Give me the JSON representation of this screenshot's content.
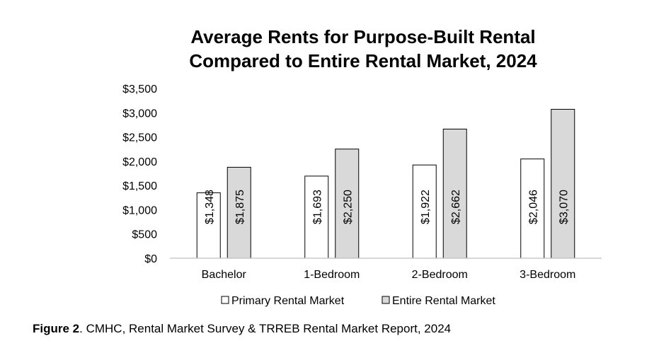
{
  "chart_data": {
    "type": "bar",
    "title_line1": "Average Rents for Purpose-Built Rental",
    "title_line2": "Compared to Entire Rental Market, 2024",
    "xlabel": "",
    "ylabel": "",
    "ylim": [
      0,
      3500
    ],
    "yticks": [
      "$0",
      "$500",
      "$1,000",
      "$1,500",
      "$2,000",
      "$2,500",
      "$3,000",
      "$3,500"
    ],
    "categories": [
      "Bachelor",
      "1-Bedroom",
      "2-Bedroom",
      "3-Bedroom"
    ],
    "series": [
      {
        "name": "Primary Rental Market",
        "values": [
          1348,
          1693,
          1922,
          2046
        ],
        "labels": [
          "$1,348",
          "$1,693",
          "$1,922",
          "$2,046"
        ],
        "color": "#ffffff"
      },
      {
        "name": "Entire Rental Market",
        "values": [
          1875,
          2250,
          2662,
          3070
        ],
        "labels": [
          "$1,875",
          "$2,250",
          "$2,662",
          "$3,070"
        ],
        "color": "#d9d9d9"
      }
    ],
    "grid": false,
    "legend_position": "bottom"
  },
  "caption": {
    "label": "Figure 2",
    "text": ". CMHC, Rental Market Survey & TRREB Rental Market Report, 2024"
  }
}
